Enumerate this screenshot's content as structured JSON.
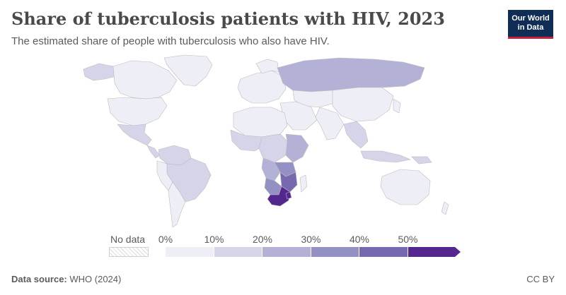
{
  "header": {
    "title": "Share of tuberculosis patients with HIV, 2023",
    "subtitle": "The estimated share of people with tuberculosis who also have HIV."
  },
  "logo": {
    "line1": "Our World",
    "line2": "in Data"
  },
  "legend": {
    "no_data_label": "No data",
    "tick_labels": [
      "0%",
      "10%",
      "20%",
      "30%",
      "40%",
      "50%"
    ],
    "bins": [
      {
        "range": "0-10%",
        "color": "#eeeef6"
      },
      {
        "range": "10-20%",
        "color": "#d5d4e8"
      },
      {
        "range": "20-30%",
        "color": "#b3b2d6"
      },
      {
        "range": "30-40%",
        "color": "#9390c3"
      },
      {
        "range": "40-50%",
        "color": "#7868b0"
      },
      {
        "range": "50%+",
        "color": "#54278f"
      }
    ]
  },
  "footer": {
    "source_label": "Data source:",
    "source_value": "WHO (2024)",
    "license": "CC BY"
  }
}
